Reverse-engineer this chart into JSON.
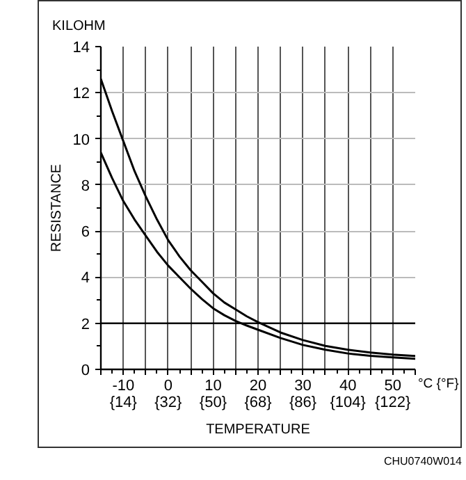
{
  "chart_data": {
    "type": "line",
    "xlabel": "TEMPERATURE",
    "ylabel": "RESISTANCE",
    "annotations": [
      "KILOHM",
      "°C {°F}",
      "CHU0740W014"
    ],
    "x": [
      -15,
      -12.5,
      -10,
      -7.5,
      -5,
      -2.5,
      0,
      2.5,
      5,
      7.5,
      10,
      12.5,
      15,
      17.5,
      20,
      25,
      30,
      35,
      40,
      45,
      50,
      55
    ],
    "series": [
      {
        "color": "#000000",
        "values": [
          12.6,
          11.2,
          9.9,
          8.6,
          7.5,
          6.5,
          5.6,
          4.9,
          4.3,
          3.8,
          3.3,
          2.9,
          2.6,
          2.3,
          2.05,
          1.6,
          1.27,
          1.02,
          0.85,
          0.73,
          0.64,
          0.58
        ]
      },
      {
        "color": "#000000",
        "values": [
          9.4,
          8.3,
          7.3,
          6.5,
          5.8,
          5.1,
          4.5,
          4.0,
          3.5,
          3.05,
          2.65,
          2.35,
          2.1,
          1.9,
          1.72,
          1.36,
          1.06,
          0.85,
          0.69,
          0.59,
          0.52,
          0.46
        ]
      }
    ],
    "xlim": [
      -15,
      55
    ],
    "ylim": [
      0,
      14
    ],
    "xticks": [
      {
        "value": -15,
        "label": null
      },
      -10,
      {
        "value": -5,
        "label": null
      },
      0,
      {
        "value": 5,
        "label": null
      },
      10,
      {
        "value": 15,
        "label": null
      },
      20,
      {
        "value": 25,
        "label": null
      },
      30,
      {
        "value": 35,
        "label": null
      },
      40,
      {
        "value": 45,
        "label": null
      },
      50,
      {
        "value": 55,
        "label": null
      }
    ],
    "x2lim": [
      5,
      131
    ],
    "x2ticks": [
      {
        "value": 14,
        "label": "{14}"
      },
      {
        "value": 32,
        "label": "{32}"
      },
      {
        "value": 50,
        "label": "{50}"
      },
      {
        "value": 68,
        "label": "{68}"
      },
      {
        "value": 86,
        "label": "{86}"
      },
      {
        "value": 104,
        "label": "{104}"
      },
      {
        "value": 122,
        "label": "{122}"
      }
    ],
    "yticks": [
      0,
      2,
      4,
      6,
      8,
      10,
      12,
      14
    ],
    "grid": true,
    "line_style": "solid",
    "ref_lines": [
      {
        "axis": "y",
        "value": 2,
        "color": "#000000"
      }
    ]
  }
}
